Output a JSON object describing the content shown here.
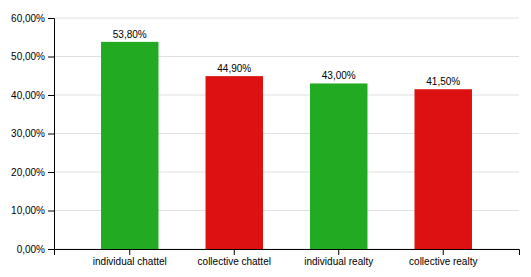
{
  "chart_data": {
    "type": "bar",
    "categories": [
      "individual chattel",
      "collective chattel",
      "individual realty",
      "collective realty"
    ],
    "values": [
      0.538,
      0.449,
      0.43,
      0.415
    ],
    "value_labels": [
      "53,80%",
      "44,90%",
      "43,00%",
      "41,50%"
    ],
    "data_labels": true,
    "colors": [
      "#22AA22",
      "#DD1111",
      "#22AA22",
      "#DD1111"
    ],
    "ylim": [
      0,
      0.6
    ],
    "yticks": [
      {
        "value": 0.0,
        "label": "0,00%"
      },
      {
        "value": 0.1,
        "label": "10,00%"
      },
      {
        "value": 0.2,
        "label": "20,00%"
      },
      {
        "value": 0.3,
        "label": "30,00%"
      },
      {
        "value": 0.4,
        "label": "40,00%"
      },
      {
        "value": 0.5,
        "label": "50,00%"
      },
      {
        "value": 0.6,
        "label": "60,00%"
      }
    ],
    "grid": true
  }
}
